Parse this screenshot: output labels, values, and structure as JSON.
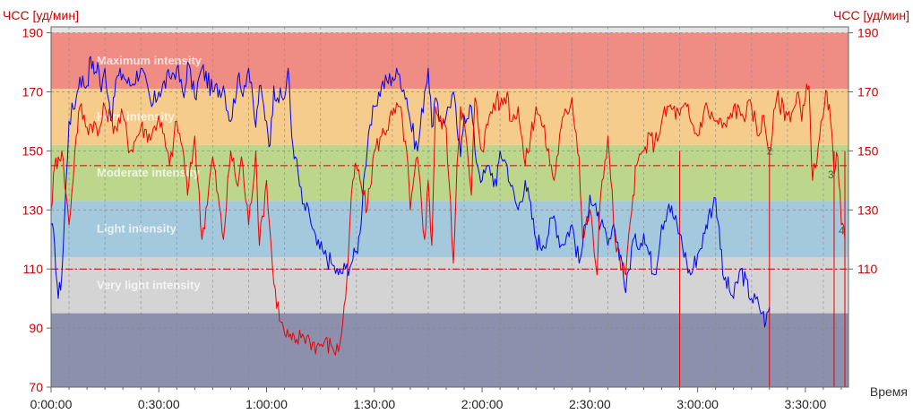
{
  "chart_data": {
    "type": "line",
    "title": "",
    "ylabel_left": "ЧСС [уд/мин]",
    "ylabel_right": "ЧСС [уд/мин]",
    "xlabel": "Время",
    "ylim": [
      70,
      192
    ],
    "xlim_minutes": [
      0,
      222
    ],
    "y_ticks": [
      70,
      90,
      110,
      130,
      150,
      170,
      190
    ],
    "y_ticks_right": [
      110,
      130,
      150,
      170,
      190
    ],
    "x_ticks": [
      {
        "t": 0,
        "label": "0:00:00"
      },
      {
        "t": 30,
        "label": "0:30:00"
      },
      {
        "t": 60,
        "label": "1:00:00"
      },
      {
        "t": 90,
        "label": "1:30:00"
      },
      {
        "t": 120,
        "label": "2:00:00"
      },
      {
        "t": 150,
        "label": "2:30:00"
      },
      {
        "t": 180,
        "label": "3:00:00"
      },
      {
        "t": 210,
        "label": "3:30:00"
      }
    ],
    "grid": true,
    "zones": [
      {
        "label": "Maximum intensity",
        "ymin": 171,
        "ymax": 190,
        "color": "#ef8c84"
      },
      {
        "label": "Hard intensity",
        "ymin": 152,
        "ymax": 171,
        "color": "#f6cc8c"
      },
      {
        "label": "Moderate intensity",
        "ymin": 133,
        "ymax": 152,
        "color": "#bcd68c"
      },
      {
        "label": "Light intensity",
        "ymin": 114,
        "ymax": 133,
        "color": "#a4c8dc"
      },
      {
        "label": "Very light intensity",
        "ymin": 95,
        "ymax": 114,
        "color": "#d4d4d4"
      },
      {
        "label": "",
        "ymin": 70,
        "ymax": 95,
        "color": "#8c90ac"
      }
    ],
    "reference_lines": [
      {
        "y": 145,
        "color": "#cc0000"
      },
      {
        "y": 110,
        "color": "#cc0000"
      }
    ],
    "markers": [
      {
        "t": 200,
        "y": 150,
        "label": "2"
      },
      {
        "t": 217,
        "y": 142,
        "label": "3"
      },
      {
        "t": 220,
        "y": 123,
        "label": "4"
      }
    ],
    "series": [
      {
        "color": "#0000ee",
        "x": [
          0,
          1,
          2,
          3,
          5,
          7,
          8,
          10,
          11,
          12,
          13,
          14,
          15,
          17,
          18,
          20,
          22,
          25,
          28,
          30,
          33,
          35,
          37,
          38,
          40,
          42,
          45,
          48,
          50,
          52,
          53,
          55,
          57,
          58,
          60,
          61,
          62,
          63,
          65,
          66,
          67,
          68,
          70,
          72,
          74,
          76,
          78,
          80,
          82,
          84,
          85,
          86,
          87,
          88,
          90,
          92,
          95,
          97,
          99,
          100,
          102,
          104,
          105,
          106,
          107,
          108,
          110,
          112,
          113,
          114,
          115,
          117,
          118,
          120,
          122,
          124,
          125,
          127,
          128,
          130,
          132,
          135,
          137,
          140,
          142,
          145,
          147,
          148,
          150,
          152,
          153,
          155,
          157,
          159,
          160,
          162,
          163,
          165,
          168,
          170,
          172,
          175,
          177,
          178,
          180,
          182,
          183,
          185,
          186,
          187,
          190,
          192,
          195,
          197,
          198,
          199,
          200
        ],
        "y": [
          125,
          118,
          100,
          108,
          160,
          168,
          175,
          172,
          182,
          176,
          180,
          170,
          178,
          160,
          174,
          176,
          172,
          178,
          165,
          170,
          175,
          178,
          168,
          180,
          168,
          178,
          170,
          172,
          160,
          175,
          170,
          178,
          158,
          172,
          160,
          152,
          172,
          168,
          168,
          178,
          155,
          148,
          132,
          128,
          118,
          115,
          112,
          108,
          110,
          113,
          116,
          122,
          140,
          150,
          165,
          172,
          175,
          176,
          168,
          160,
          150,
          170,
          178,
          158,
          168,
          160,
          162,
          170,
          158,
          148,
          162,
          165,
          150,
          140,
          145,
          138,
          150,
          145,
          138,
          130,
          140,
          120,
          118,
          128,
          118,
          125,
          112,
          118,
          135,
          128,
          125,
          118,
          123,
          112,
          102,
          120,
          118,
          122,
          108,
          125,
          132,
          122,
          112,
          108,
          115,
          122,
          128,
          134,
          124,
          108,
          100,
          110,
          100,
          98,
          95,
          92,
          97
        ]
      },
      {
        "color": "#ee0000",
        "x": [
          0,
          1,
          2,
          3,
          5,
          7,
          8,
          10,
          12,
          13,
          15,
          17,
          18,
          20,
          22,
          25,
          28,
          30,
          33,
          35,
          37,
          38,
          40,
          42,
          45,
          48,
          50,
          52,
          53,
          55,
          57,
          58,
          60,
          62,
          64,
          65,
          67,
          68,
          70,
          72,
          74,
          76,
          78,
          80,
          82,
          84,
          85,
          86,
          87,
          88,
          90,
          92,
          95,
          97,
          99,
          100,
          102,
          104,
          105,
          106,
          107,
          108,
          110,
          112,
          113,
          114,
          115,
          117,
          118,
          120,
          122,
          124,
          125,
          127,
          128,
          130,
          132,
          135,
          137,
          140,
          142,
          145,
          147,
          148,
          150,
          152,
          153,
          155,
          157,
          159,
          160,
          162,
          163,
          165,
          167,
          168,
          170,
          172,
          175,
          177,
          178,
          180,
          182,
          185,
          188,
          190,
          192,
          195,
          197,
          198,
          200,
          202,
          205,
          207,
          208,
          209,
          210,
          211,
          212,
          214,
          215,
          216,
          217,
          218,
          219,
          220,
          221
        ],
        "y": [
          130,
          145,
          148,
          150,
          125,
          155,
          165,
          158,
          160,
          155,
          165,
          160,
          158,
          162,
          150,
          158,
          155,
          162,
          145,
          160,
          148,
          135,
          155,
          120,
          148,
          120,
          150,
          138,
          148,
          125,
          150,
          118,
          140,
          105,
          92,
          88,
          86,
          85,
          88,
          86,
          84,
          85,
          84,
          82,
          100,
          140,
          145,
          140,
          135,
          130,
          150,
          155,
          162,
          165,
          150,
          130,
          148,
          120,
          140,
          118,
          165,
          160,
          158,
          112,
          145,
          165,
          160,
          135,
          168,
          150,
          162,
          168,
          165,
          170,
          160,
          165,
          145,
          165,
          158,
          140,
          158,
          168,
          148,
          120,
          130,
          108,
          135,
          155,
          120,
          110,
          108,
          135,
          145,
          150,
          155,
          152,
          160,
          165,
          162,
          165,
          160,
          155,
          165,
          160,
          158,
          165,
          162,
          165,
          155,
          162,
          150,
          168,
          162,
          165,
          170,
          160,
          168,
          172,
          140,
          155,
          162,
          170,
          160,
          142,
          148,
          125,
          120
        ]
      }
    ],
    "drop_lines": [
      {
        "t": 175
      },
      {
        "t": 200
      },
      {
        "t": 218
      },
      {
        "t": 221
      }
    ]
  }
}
